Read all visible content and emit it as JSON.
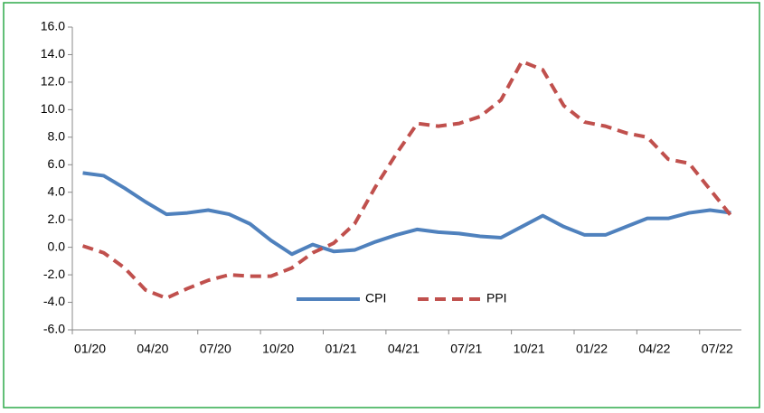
{
  "chart_data": {
    "type": "line",
    "categories": [
      "01/20",
      null,
      null,
      "04/20",
      null,
      null,
      "07/20",
      null,
      null,
      "10/20",
      null,
      null,
      "01/21",
      null,
      null,
      "04/21",
      null,
      null,
      "07/21",
      null,
      null,
      "10/21",
      null,
      null,
      "01/22",
      null,
      null,
      "04/22",
      null,
      null,
      "07/22",
      null
    ],
    "series": [
      {
        "name": "CPI",
        "color": "#4f81bd",
        "dash": false,
        "values": [
          5.4,
          5.2,
          4.3,
          3.3,
          2.4,
          2.5,
          2.7,
          2.4,
          1.7,
          0.5,
          -0.5,
          0.2,
          -0.3,
          -0.2,
          0.4,
          0.9,
          1.3,
          1.1,
          1.0,
          0.8,
          0.7,
          1.5,
          2.3,
          1.5,
          0.9,
          0.9,
          1.5,
          2.1,
          2.1,
          2.5,
          2.7,
          2.5
        ]
      },
      {
        "name": "PPI",
        "color": "#c0504d",
        "dash": true,
        "values": [
          0.1,
          -0.4,
          -1.5,
          -3.1,
          -3.7,
          -3.0,
          -2.4,
          -2.0,
          -2.1,
          -2.1,
          -1.5,
          -0.4,
          0.3,
          1.7,
          4.4,
          6.8,
          9.0,
          8.8,
          9.0,
          9.5,
          10.7,
          13.5,
          12.9,
          10.3,
          9.1,
          8.8,
          8.3,
          8.0,
          6.4,
          6.1,
          4.2,
          2.3
        ]
      }
    ],
    "ylim": [
      -6,
      16
    ],
    "yticks": [
      {
        "value": -6,
        "label": "-6.0"
      },
      {
        "value": -4,
        "label": "-4.0"
      },
      {
        "value": -2,
        "label": "-2.0"
      },
      {
        "value": 0,
        "label": "0.0"
      },
      {
        "value": 2,
        "label": "2.0"
      },
      {
        "value": 4,
        "label": "4.0"
      },
      {
        "value": 6,
        "label": "6.0"
      },
      {
        "value": 8,
        "label": "8.0"
      },
      {
        "value": 10,
        "label": "10.0"
      },
      {
        "value": 12,
        "label": "12.0"
      },
      {
        "value": 14,
        "label": "14.0"
      },
      {
        "value": 16,
        "label": "16.0"
      }
    ],
    "grid": false,
    "legend": "bottom"
  }
}
